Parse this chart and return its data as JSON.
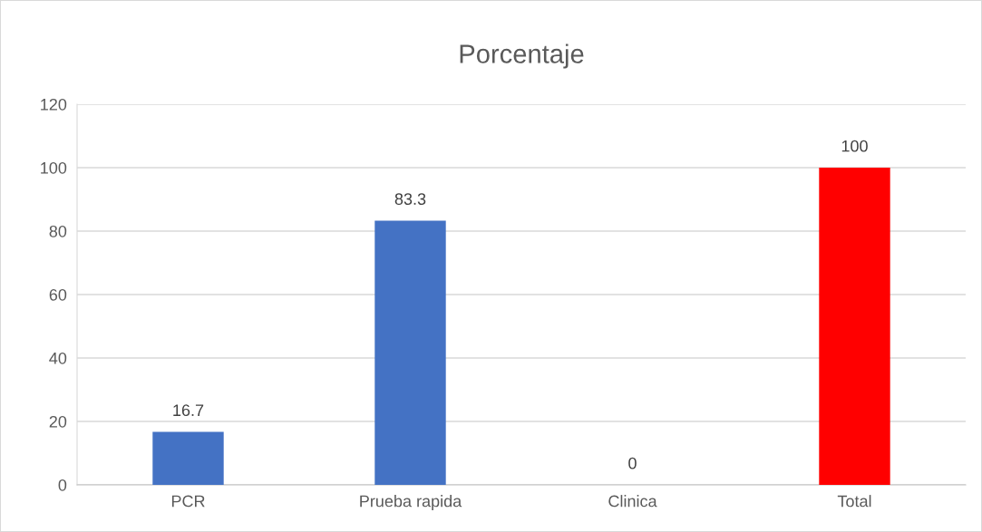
{
  "chart_data": {
    "type": "bar",
    "title": "Porcentaje",
    "categories": [
      "PCR",
      "Prueba rapida",
      "Clinica",
      "Total"
    ],
    "values": [
      16.7,
      83.3,
      0,
      100
    ],
    "colors": [
      "#4472c4",
      "#4472c4",
      "#4472c4",
      "#ff0000"
    ],
    "ylim": [
      0,
      120
    ],
    "yticks": [
      0,
      20,
      40,
      60,
      80,
      100,
      120
    ],
    "grid": "y",
    "data_labels": true
  }
}
